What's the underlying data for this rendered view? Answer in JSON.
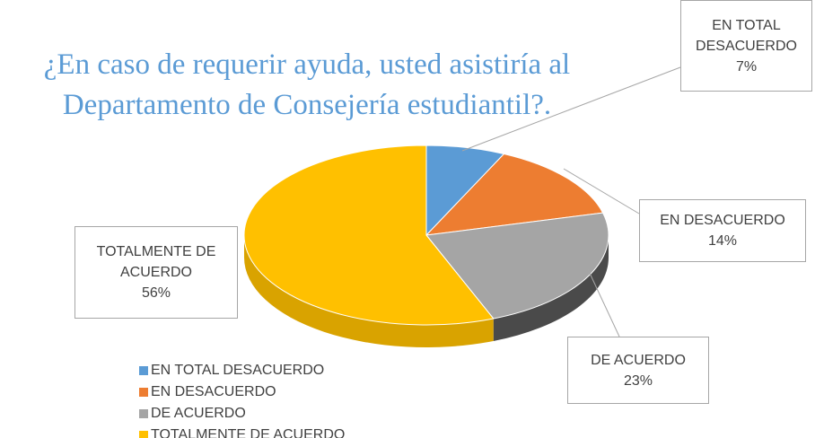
{
  "chart_data": {
    "type": "pie",
    "title": "¿En caso de requerir ayuda, usted asistiría al Departamento de Consejería estudiantil?.",
    "categories": [
      "EN TOTAL DESACUERDO",
      "EN DESACUERDO",
      "DE ACUERDO",
      "TOTALMENTE DE ACUERDO"
    ],
    "values": [
      7,
      14,
      23,
      56
    ],
    "value_labels": [
      "7%",
      "14%",
      "23%",
      "56%"
    ],
    "colors": [
      "#5b9bd5",
      "#ed7d31",
      "#a5a5a5",
      "#ffc000"
    ],
    "legend": "bottom-left"
  }
}
